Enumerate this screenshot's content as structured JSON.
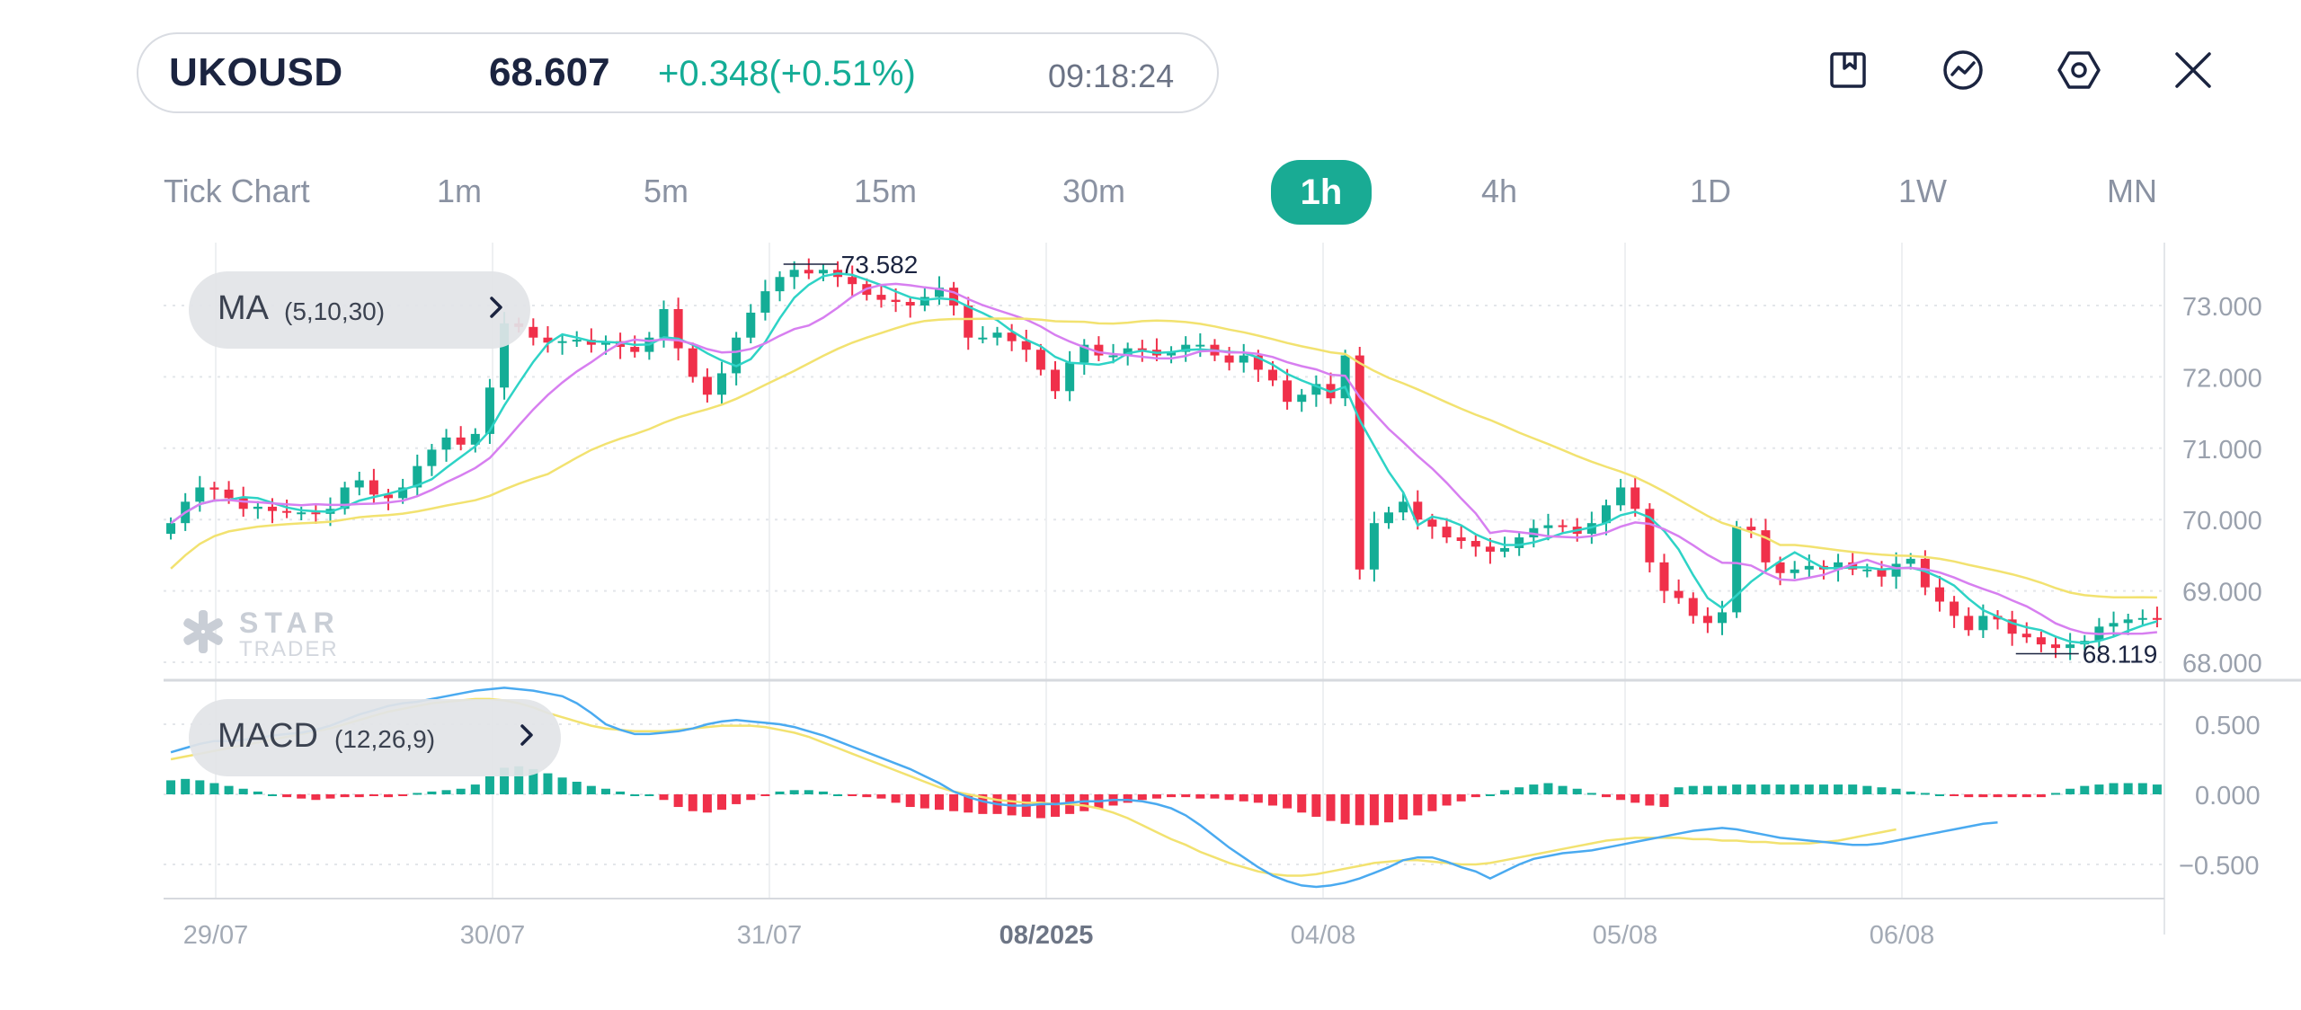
{
  "header": {
    "symbol": "UKOUSD",
    "price": "68.607",
    "change": "+0.348(+0.51%)",
    "time": "09:18:24",
    "icons": [
      "bookmark-icon",
      "trend-line-icon",
      "settings-hex-icon",
      "close-icon"
    ]
  },
  "timeframes": [
    {
      "label": "Tick Chart",
      "active": false
    },
    {
      "label": "1m",
      "active": false
    },
    {
      "label": "5m",
      "active": false
    },
    {
      "label": "15m",
      "active": false
    },
    {
      "label": "30m",
      "active": false
    },
    {
      "label": "1h",
      "active": true
    },
    {
      "label": "4h",
      "active": false
    },
    {
      "label": "1D",
      "active": false
    },
    {
      "label": "1W",
      "active": false
    },
    {
      "label": "MN",
      "active": false
    }
  ],
  "indicators": {
    "ma": {
      "name": "MA",
      "params": "(5,10,30)"
    },
    "macd": {
      "name": "MACD",
      "params": "(12,26,9)"
    }
  },
  "watermark": {
    "line1": "STAR",
    "line2": "TRADER"
  },
  "colors": {
    "up": "#14ad96",
    "down": "#f0304a",
    "ma5": "#2ed3c6",
    "ma10": "#d77ff0",
    "ma30": "#f2e270",
    "macd_line": "#4aaaf0",
    "signal_line": "#f2e270",
    "accent": "#19ab94"
  },
  "chart_data": {
    "type": "candlestick",
    "symbol": "UKOUSD",
    "interval": "1h",
    "price_axis": {
      "ticks": [
        "73.000",
        "72.000",
        "71.000",
        "70.000",
        "69.000",
        "68.000"
      ],
      "range": [
        67.9,
        73.75
      ]
    },
    "time_axis": {
      "labels": [
        "29/07",
        "30/07",
        "31/07",
        "08/2025",
        "04/08",
        "05/08",
        "06/08"
      ]
    },
    "high_marker": "73.582",
    "low_marker": "68.119",
    "closes": [
      69.95,
      70.25,
      70.45,
      70.42,
      70.3,
      70.15,
      70.18,
      70.12,
      70.1,
      70.1,
      70.08,
      70.15,
      70.45,
      70.55,
      70.35,
      70.3,
      70.45,
      70.75,
      70.98,
      71.15,
      71.05,
      71.2,
      71.85,
      72.75,
      72.7,
      72.55,
      72.48,
      72.5,
      72.52,
      72.45,
      72.5,
      72.42,
      72.35,
      72.55,
      72.95,
      72.4,
      72.0,
      71.75,
      72.05,
      72.55,
      72.9,
      73.2,
      73.4,
      73.5,
      73.45,
      73.5,
      73.4,
      73.3,
      73.15,
      73.08,
      73.05,
      73.0,
      73.12,
      73.25,
      73.0,
      72.55,
      72.55,
      72.62,
      72.5,
      72.38,
      72.1,
      71.8,
      72.2,
      72.45,
      72.3,
      72.3,
      72.4,
      72.38,
      72.3,
      72.35,
      72.45,
      72.45,
      72.3,
      72.2,
      72.3,
      72.1,
      71.95,
      71.65,
      71.75,
      71.9,
      71.7,
      72.3,
      69.3,
      69.95,
      70.1,
      70.25,
      70.0,
      69.9,
      69.75,
      69.7,
      69.62,
      69.55,
      69.6,
      69.75,
      69.88,
      69.92,
      69.9,
      69.8,
      69.95,
      70.2,
      70.45,
      70.15,
      69.4,
      69.0,
      68.9,
      68.65,
      68.55,
      68.7,
      69.9,
      69.85,
      69.4,
      69.25,
      69.3,
      69.35,
      69.3,
      69.4,
      69.3,
      69.3,
      69.2,
      69.38,
      69.45,
      69.05,
      68.85,
      68.65,
      68.45,
      68.65,
      68.6,
      68.4,
      68.35,
      68.25,
      68.2,
      68.25,
      68.3,
      68.5,
      68.55,
      68.6,
      68.62,
      68.6
    ],
    "macd": {
      "y_ticks": [
        "0.500",
        "0.000",
        "-0.500"
      ],
      "y_range": [
        -0.72,
        0.75
      ],
      "histogram": [
        0.1,
        0.11,
        0.1,
        0.08,
        0.06,
        0.04,
        0.02,
        0.0,
        -0.02,
        -0.03,
        -0.04,
        -0.03,
        -0.02,
        -0.02,
        -0.01,
        -0.02,
        -0.01,
        0.01,
        0.02,
        0.03,
        0.04,
        0.07,
        0.13,
        0.19,
        0.2,
        0.18,
        0.15,
        0.12,
        0.09,
        0.06,
        0.04,
        0.02,
        0.0,
        0.0,
        -0.04,
        -0.09,
        -0.12,
        -0.13,
        -0.11,
        -0.07,
        -0.04,
        -0.01,
        0.02,
        0.03,
        0.03,
        0.02,
        0.0,
        -0.01,
        -0.02,
        -0.03,
        -0.06,
        -0.09,
        -0.1,
        -0.11,
        -0.12,
        -0.13,
        -0.14,
        -0.14,
        -0.15,
        -0.16,
        -0.17,
        -0.16,
        -0.14,
        -0.12,
        -0.1,
        -0.08,
        -0.06,
        -0.04,
        -0.03,
        -0.02,
        -0.02,
        -0.03,
        -0.03,
        -0.04,
        -0.05,
        -0.06,
        -0.08,
        -0.1,
        -0.13,
        -0.16,
        -0.19,
        -0.21,
        -0.22,
        -0.22,
        -0.2,
        -0.18,
        -0.15,
        -0.12,
        -0.08,
        -0.05,
        -0.02,
        0.0,
        0.03,
        0.05,
        0.07,
        0.08,
        0.06,
        0.04,
        0.01,
        -0.02,
        -0.04,
        -0.06,
        -0.08,
        -0.09,
        0.05,
        0.06,
        0.06,
        0.06,
        0.07,
        0.07,
        0.07,
        0.07,
        0.07,
        0.07,
        0.07,
        0.07,
        0.07,
        0.06,
        0.05,
        0.04,
        0.02,
        0.01,
        0.0,
        -0.01,
        -0.02,
        -0.02,
        -0.02,
        -0.02,
        -0.02,
        -0.02,
        0.01,
        0.04,
        0.06,
        0.07,
        0.08,
        0.08,
        0.08,
        0.07
      ],
      "macd_line": [
        0.3,
        0.33,
        0.36,
        0.38,
        0.38,
        0.39,
        0.4,
        0.42,
        0.43,
        0.44,
        0.46,
        0.49,
        0.53,
        0.57,
        0.6,
        0.63,
        0.65,
        0.66,
        0.68,
        0.7,
        0.72,
        0.74,
        0.75,
        0.76,
        0.75,
        0.74,
        0.72,
        0.7,
        0.65,
        0.58,
        0.5,
        0.46,
        0.43,
        0.43,
        0.44,
        0.45,
        0.47,
        0.5,
        0.52,
        0.53,
        0.52,
        0.51,
        0.5,
        0.48,
        0.45,
        0.42,
        0.38,
        0.34,
        0.3,
        0.26,
        0.22,
        0.18,
        0.13,
        0.08,
        0.02,
        -0.02,
        -0.05,
        -0.07,
        -0.08,
        -0.08,
        -0.07,
        -0.07,
        -0.06,
        -0.05,
        -0.05,
        -0.04,
        -0.04,
        -0.05,
        -0.07,
        -0.1,
        -0.15,
        -0.22,
        -0.3,
        -0.38,
        -0.45,
        -0.52,
        -0.58,
        -0.62,
        -0.65,
        -0.66,
        -0.65,
        -0.63,
        -0.6,
        -0.56,
        -0.52,
        -0.47,
        -0.45,
        -0.45,
        -0.48,
        -0.52,
        -0.55,
        -0.6,
        -0.55,
        -0.5,
        -0.46,
        -0.44,
        -0.42,
        -0.41,
        -0.4,
        -0.38,
        -0.36,
        -0.34,
        -0.32,
        -0.3,
        -0.28,
        -0.26,
        -0.25,
        -0.24,
        -0.25,
        -0.27,
        -0.29,
        -0.31,
        -0.32,
        -0.33,
        -0.34,
        -0.35,
        -0.36,
        -0.36,
        -0.35,
        -0.33,
        -0.31,
        -0.29,
        -0.27,
        -0.25,
        -0.23,
        -0.21,
        -0.2
      ],
      "signal_line": [
        0.25,
        0.27,
        0.29,
        0.31,
        0.33,
        0.35,
        0.37,
        0.39,
        0.41,
        0.43,
        0.45,
        0.47,
        0.5,
        0.53,
        0.56,
        0.59,
        0.61,
        0.63,
        0.65,
        0.66,
        0.67,
        0.68,
        0.68,
        0.67,
        0.65,
        0.62,
        0.58,
        0.55,
        0.52,
        0.49,
        0.47,
        0.46,
        0.45,
        0.45,
        0.45,
        0.46,
        0.47,
        0.48,
        0.49,
        0.49,
        0.49,
        0.48,
        0.46,
        0.44,
        0.41,
        0.37,
        0.33,
        0.29,
        0.25,
        0.21,
        0.17,
        0.13,
        0.09,
        0.05,
        0.02,
        0.0,
        -0.02,
        -0.04,
        -0.05,
        -0.06,
        -0.06,
        -0.07,
        -0.07,
        -0.08,
        -0.1,
        -0.13,
        -0.17,
        -0.22,
        -0.27,
        -0.32,
        -0.36,
        -0.41,
        -0.45,
        -0.49,
        -0.52,
        -0.55,
        -0.57,
        -0.58,
        -0.58,
        -0.57,
        -0.55,
        -0.53,
        -0.51,
        -0.49,
        -0.48,
        -0.47,
        -0.47,
        -0.48,
        -0.49,
        -0.5,
        -0.5,
        -0.49,
        -0.47,
        -0.45,
        -0.43,
        -0.41,
        -0.39,
        -0.37,
        -0.35,
        -0.33,
        -0.32,
        -0.31,
        -0.31,
        -0.31,
        -0.31,
        -0.32,
        -0.32,
        -0.33,
        -0.33,
        -0.34,
        -0.34,
        -0.35,
        -0.35,
        -0.35,
        -0.34,
        -0.33,
        -0.31,
        -0.29,
        -0.27,
        -0.25
      ]
    }
  }
}
